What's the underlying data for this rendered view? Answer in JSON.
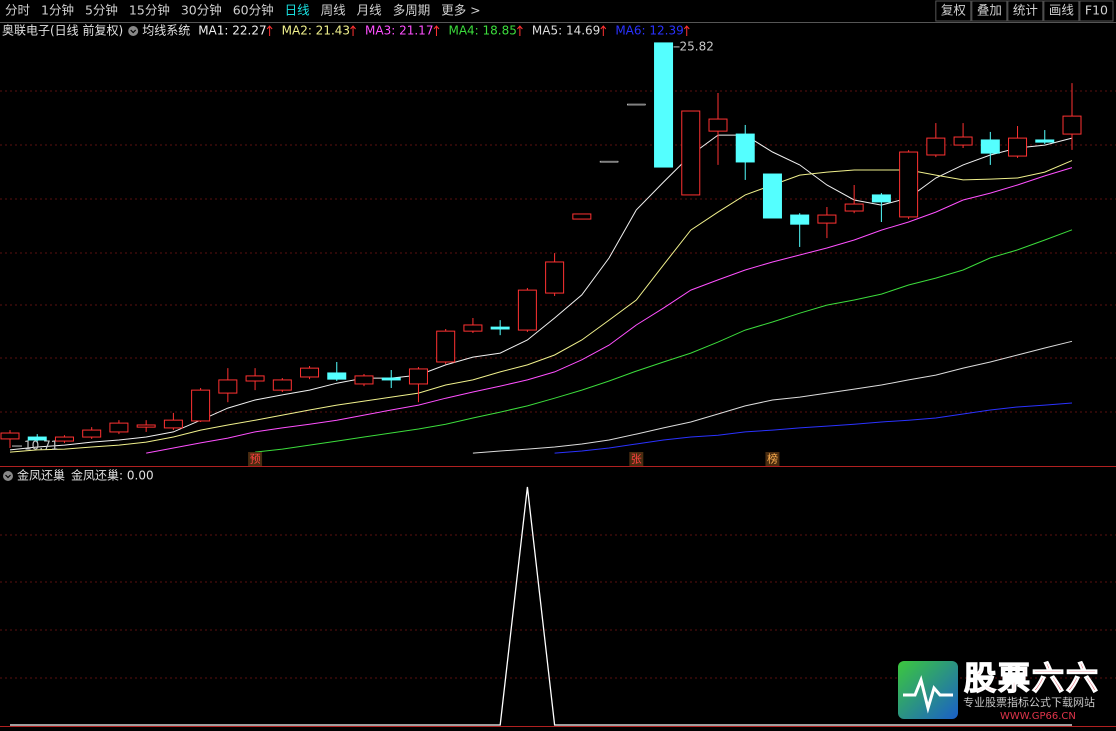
{
  "toolbar": {
    "periods": [
      "分时",
      "1分钟",
      "5分钟",
      "15分钟",
      "30分钟",
      "60分钟",
      "日线",
      "周线",
      "月线",
      "多周期"
    ],
    "more": "更多 >",
    "tools": [
      "复权",
      "叠加",
      "统计",
      "画线",
      "F10"
    ]
  },
  "chart_data": [
    {
      "type": "candlestick",
      "title": "奥联电子(日线 前复权)",
      "indicator": "均线系统",
      "up_color": "#ff3232",
      "down_color": "#54ffff",
      "open": [
        11.05,
        11.12,
        10.97,
        11.12,
        11.31,
        11.49,
        11.46,
        11.72,
        12.76,
        13.21,
        12.87,
        13.36,
        13.51,
        13.1,
        13.32,
        13.1,
        13.92,
        15.07,
        15.22,
        15.11,
        16.49,
        19.25,
        21.41,
        23.54,
        25.82,
        20.15,
        22.53,
        22.42,
        20.93,
        19.4,
        19.1,
        19.55,
        20.15,
        19.33,
        21.64,
        22.01,
        22.2,
        21.6,
        22.2,
        22.42
      ],
      "high": [
        11.38,
        11.23,
        11.19,
        11.49,
        11.75,
        11.75,
        12.02,
        12.95,
        13.69,
        13.69,
        13.32,
        13.77,
        13.92,
        13.47,
        13.62,
        13.73,
        15.15,
        15.56,
        15.48,
        16.68,
        17.98,
        19.44,
        21.41,
        23.54,
        25.82,
        23.28,
        23.95,
        22.76,
        20.93,
        19.47,
        19.7,
        20.52,
        20.22,
        21.82,
        22.83,
        22.83,
        22.5,
        22.72,
        22.57,
        24.32
      ],
      "low": [
        10.71,
        10.9,
        10.9,
        11.05,
        11.23,
        11.31,
        11.38,
        11.68,
        12.42,
        12.87,
        12.8,
        13.28,
        13.21,
        13.02,
        12.95,
        12.42,
        13.84,
        15.0,
        14.92,
        15.04,
        16.38,
        19.25,
        21.41,
        23.54,
        21.19,
        20.15,
        21.27,
        20.71,
        19.29,
        18.21,
        18.54,
        19.47,
        19.14,
        19.25,
        21.56,
        21.9,
        21.27,
        21.53,
        22.05,
        21.83
      ],
      "close": [
        11.27,
        11.01,
        11.12,
        11.38,
        11.64,
        11.57,
        11.75,
        12.87,
        13.25,
        13.4,
        13.25,
        13.69,
        13.28,
        13.4,
        13.25,
        13.66,
        15.07,
        15.3,
        15.15,
        16.6,
        17.65,
        19.44,
        21.41,
        23.54,
        21.19,
        23.28,
        22.98,
        21.38,
        19.29,
        19.06,
        19.4,
        19.81,
        19.89,
        21.75,
        22.27,
        22.31,
        21.71,
        22.27,
        22.12,
        23.09
      ],
      "signals": [
        null,
        null,
        null,
        null,
        null,
        null,
        null,
        null,
        null,
        "预",
        null,
        null,
        null,
        null,
        null,
        null,
        null,
        null,
        null,
        null,
        null,
        null,
        null,
        "张",
        null,
        null,
        null,
        null,
        "榜",
        null,
        null,
        null,
        null,
        null,
        null,
        null,
        null,
        null,
        null,
        null
      ],
      "ylim": [
        10.04,
        26.6
      ],
      "series": [
        {
          "label": "MA1: 22.27",
          "color": "#f0f0f0",
          "values": [
            10.64,
            10.75,
            10.82,
            10.93,
            11.01,
            11.12,
            11.31,
            11.75,
            12.2,
            12.5,
            12.69,
            12.87,
            13.13,
            13.32,
            13.32,
            13.43,
            13.81,
            14.1,
            14.25,
            14.74,
            15.56,
            16.42,
            17.8,
            19.59,
            20.63,
            21.64,
            22.38,
            22.38,
            21.75,
            21.27,
            20.52,
            19.96,
            19.77,
            20.04,
            20.78,
            21.27,
            21.64,
            21.9,
            22.01,
            22.27
          ]
        },
        {
          "label": "MA2: 21.43",
          "color": "#f0f08c",
          "values": [
            10.56,
            10.64,
            10.67,
            10.75,
            10.82,
            10.93,
            11.12,
            11.38,
            11.57,
            11.75,
            11.94,
            12.13,
            12.31,
            12.46,
            12.61,
            12.76,
            13.06,
            13.25,
            13.55,
            13.81,
            14.18,
            14.74,
            15.48,
            16.23,
            17.54,
            18.84,
            19.51,
            20.15,
            20.52,
            20.89,
            21.0,
            21.08,
            21.08,
            21.08,
            20.89,
            20.71,
            20.74,
            20.78,
            21.0,
            21.43
          ]
        },
        {
          "label": "MA3: 21.17",
          "color": "#ff50ff",
          "values": [
            null,
            null,
            null,
            null,
            null,
            10.52,
            10.71,
            10.9,
            11.08,
            11.31,
            11.46,
            11.6,
            11.75,
            11.94,
            12.13,
            12.31,
            12.57,
            12.8,
            13.02,
            13.25,
            13.55,
            14.0,
            14.55,
            15.3,
            15.93,
            16.6,
            16.98,
            17.35,
            17.65,
            17.91,
            18.17,
            18.47,
            18.84,
            19.14,
            19.51,
            19.96,
            20.22,
            20.52,
            20.86,
            21.17
          ]
        },
        {
          "label": "MA4: 18.85",
          "color": "#3cdc3c",
          "values": [
            null,
            null,
            null,
            null,
            null,
            null,
            null,
            null,
            null,
            10.56,
            10.67,
            10.82,
            10.97,
            11.12,
            11.27,
            11.42,
            11.6,
            11.83,
            12.05,
            12.28,
            12.57,
            12.87,
            13.21,
            13.58,
            13.92,
            14.25,
            14.66,
            15.11,
            15.41,
            15.74,
            16.04,
            16.23,
            16.45,
            16.79,
            17.05,
            17.35,
            17.8,
            18.1,
            18.47,
            18.85
          ]
        },
        {
          "label": "MA5: 14.69",
          "color": "#dcdcdc",
          "values": [
            null,
            null,
            null,
            null,
            null,
            null,
            null,
            null,
            null,
            null,
            null,
            null,
            null,
            null,
            null,
            null,
            null,
            10.52,
            10.6,
            10.67,
            10.75,
            10.86,
            11.01,
            11.23,
            11.46,
            11.68,
            11.98,
            12.28,
            12.5,
            12.61,
            12.76,
            12.91,
            13.06,
            13.25,
            13.43,
            13.69,
            13.92,
            14.18,
            14.44,
            14.69
          ]
        },
        {
          "label": "MA6: 12.39",
          "color": "#2a32ff",
          "values": [
            null,
            null,
            null,
            null,
            null,
            null,
            null,
            null,
            null,
            null,
            null,
            null,
            null,
            null,
            null,
            null,
            null,
            null,
            null,
            null,
            10.52,
            10.6,
            10.71,
            10.86,
            11.01,
            11.12,
            11.19,
            11.31,
            11.38,
            11.46,
            11.53,
            11.6,
            11.68,
            11.75,
            11.83,
            11.98,
            12.13,
            12.24,
            12.31,
            12.39
          ]
        }
      ]
    },
    {
      "type": "line",
      "title": "金凤还巢",
      "label": "金凤还巢: 0.00",
      "color": "#ffffff",
      "values": [
        0,
        0,
        0,
        0,
        0,
        0,
        0,
        0,
        0,
        0,
        0,
        0,
        0,
        0,
        0,
        0,
        0,
        0,
        0,
        1,
        0,
        0,
        0,
        0,
        0,
        0,
        0,
        0,
        0,
        0,
        0,
        0,
        0,
        0,
        0,
        0,
        0,
        0,
        0,
        0
      ],
      "ylim": [
        0,
        1
      ]
    }
  ],
  "watermark": {
    "brand": "股票六六",
    "slogan": "专业股票指标公式下载网站",
    "url": "WWW.GP66.CN"
  }
}
